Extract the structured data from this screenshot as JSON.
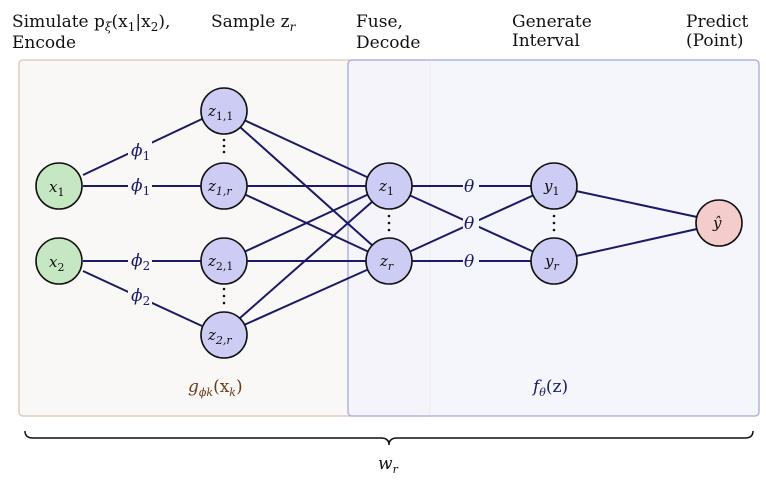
{
  "headers": {
    "h1": "Simulate p",
    "h1_sub": "ξ",
    "h1_rest": "(x",
    "h1_line2": "Encode",
    "h2": "Sample z",
    "h2_sub": "r",
    "h3_line1": "Fuse,",
    "h3_line2": "Decode",
    "h4_line1": "Generate",
    "h4_line2": "Interval",
    "h5_line1": "Predict",
    "h5_line2": "(Point)"
  },
  "nodes": {
    "x1": {
      "main": "x",
      "sub": "1"
    },
    "x2": {
      "main": "x",
      "sub": "2"
    },
    "z11": {
      "main": "z",
      "sub": "1,1"
    },
    "z1r": {
      "main": "z",
      "sub": "1,r"
    },
    "z21": {
      "main": "z",
      "sub": "2,1"
    },
    "z2r": {
      "main": "z",
      "sub": "2,r"
    },
    "z1": {
      "main": "z",
      "sub": "1"
    },
    "zr": {
      "main": "z",
      "sub": "r"
    },
    "y1": {
      "main": "y",
      "sub": "1"
    },
    "yr": {
      "main": "y",
      "sub": "r"
    },
    "yhat": {
      "main": "ŷ"
    }
  },
  "edge_labels": {
    "phi": "ϕ",
    "phi1_sub": "1",
    "phi2_sub": "2",
    "theta": "θ"
  },
  "regions": {
    "encoder": {
      "fn": "g",
      "sub": "ϕk",
      "arg": "(x",
      "arg_sub": "k",
      "close": ")"
    },
    "decoder": {
      "fn": "f",
      "sub": "θ",
      "arg": "(z)"
    }
  },
  "brace_label": {
    "main": "w",
    "sub": "r"
  },
  "colors": {
    "input_node": "#c5e8c3",
    "latent_node": "#ccccf5",
    "output_node": "#f5cccc",
    "edge": "#1a1a66",
    "encoder_box_fill": "#faf8f6",
    "encoder_box_stroke": "#dcc4b0",
    "encoder_label": "#6b3a1a",
    "decoder_box_fill": "#f7f7fd",
    "decoder_box_stroke": "#a8a8e0",
    "decoder_label": "#1a1a66"
  }
}
